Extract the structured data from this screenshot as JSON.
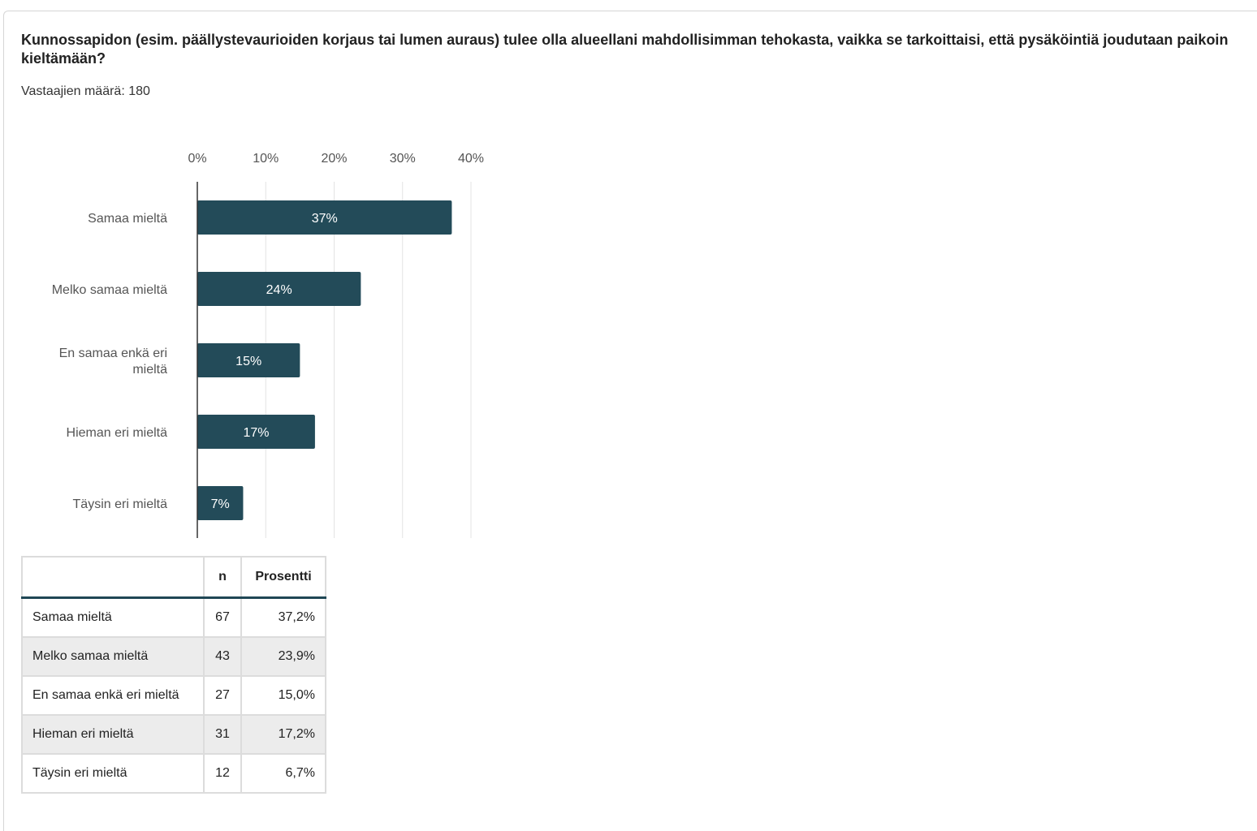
{
  "question": "Kunnossapidon (esim. päällystevaurioiden korjaus tai lumen auraus) tulee olla alueellani mahdollisimman tehokasta, vaikka se tarkoittaisi, että pysäköintiä joudutaan paikoin kieltämään?",
  "respondents": "Vastaajien määrä: 180",
  "colors": {
    "bar": "#234b59",
    "bar_label": "#ffffff",
    "grid": "#e3e3e3",
    "axis": "#333333",
    "header_rule": "#1f4755"
  },
  "chart_data": {
    "type": "bar",
    "orientation": "horizontal",
    "categories": [
      "Samaa mieltä",
      "Melko samaa mieltä",
      "En samaa enkä eri mieltä",
      "Hieman eri mieltä",
      "Täysin eri mieltä"
    ],
    "category_label_lines": [
      [
        "Samaa mieltä"
      ],
      [
        "Melko samaa mieltä"
      ],
      [
        "En samaa enkä eri",
        "mieltä"
      ],
      [
        "Hieman eri mieltä"
      ],
      [
        "Täysin eri mieltä"
      ]
    ],
    "values": [
      37.2,
      23.9,
      15.0,
      17.2,
      6.7
    ],
    "data_labels": [
      "37%",
      "24%",
      "15%",
      "17%",
      "7%"
    ],
    "xticks": [
      "0%",
      "10%",
      "20%",
      "30%",
      "40%"
    ],
    "xtick_values": [
      0,
      10,
      20,
      30,
      40
    ],
    "xlim": [
      0,
      40
    ],
    "tick_position": "top",
    "grid": true,
    "legend": false
  },
  "table": {
    "headers": [
      "",
      "n",
      "Prosentti"
    ],
    "rows": [
      [
        "Samaa mieltä",
        "67",
        "37,2%"
      ],
      [
        "Melko samaa mieltä",
        "43",
        "23,9%"
      ],
      [
        "En samaa enkä eri mieltä",
        "27",
        "15,0%"
      ],
      [
        "Hieman eri mieltä",
        "31",
        "17,2%"
      ],
      [
        "Täysin eri mieltä",
        "12",
        "6,7%"
      ]
    ]
  }
}
